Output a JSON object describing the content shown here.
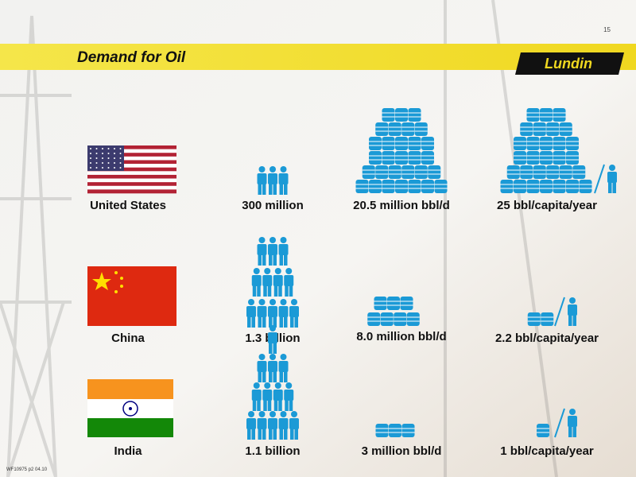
{
  "header": {
    "page_number": "15",
    "title": "Demand for Oil",
    "logo": "Lundin"
  },
  "rows": [
    {
      "country": "United States",
      "population": "300 million",
      "demand": "20.5 million bbl/d",
      "per_capita": "25 bbl/capita/year"
    },
    {
      "country": "China",
      "population": "1.3 billion",
      "demand": "8.0 million bbl/d",
      "per_capita": "2.2 bbl/capita/year"
    },
    {
      "country": "India",
      "population": "1.1 billion",
      "demand": "3 million bbl/d",
      "per_capita": "1 bbl/capita/year"
    }
  ],
  "footer": "WF10975 p2 04.10"
}
